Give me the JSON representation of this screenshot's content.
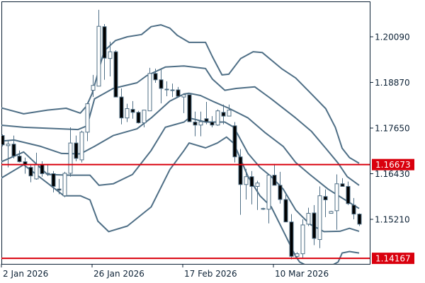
{
  "chart_data": {
    "type": "candlestick",
    "title": "",
    "x_unit": "bar index",
    "x_tick_labels": [
      {
        "index": 0,
        "label": "2 Jan 2026"
      },
      {
        "index": 16,
        "label": "26 Jan 2026"
      },
      {
        "index": 32,
        "label": "17 Feb 2026"
      },
      {
        "index": 48,
        "label": "10 Mar 2026"
      }
    ],
    "y_tick_labels": [
      "1.20090",
      "1.18870",
      "1.17650",
      "1.16430",
      "1.15210"
    ],
    "y_ticks": [
      1.2009,
      1.1887,
      1.1765,
      1.1643,
      1.1521
    ],
    "ylim": [
      1.1395,
      1.2099
    ],
    "y_axis_position": "right",
    "grid": false,
    "colors": {
      "line": "#4f6f86",
      "bear_body": "#000000",
      "bull_body": "#ffffff",
      "horizontal_line": "#d9000d",
      "axis": "#0d2236"
    },
    "candles_ohlc": [
      [
        1.1745,
        1.1748,
        1.1716,
        1.172
      ],
      [
        1.1718,
        1.173,
        1.166,
        1.1722
      ],
      [
        1.1722,
        1.1745,
        1.1684,
        1.169
      ],
      [
        1.169,
        1.1705,
        1.1673,
        1.1675
      ],
      [
        1.1675,
        1.1686,
        1.1643,
        1.1667
      ],
      [
        1.166,
        1.1667,
        1.162,
        1.1637
      ],
      [
        1.1629,
        1.1699,
        1.1627,
        1.1667
      ],
      [
        1.1667,
        1.1676,
        1.1635,
        1.1643
      ],
      [
        1.1643,
        1.1667,
        1.1637,
        1.1644
      ],
      [
        1.1643,
        1.165,
        1.1593,
        1.1609
      ],
      [
        1.1602,
        1.1629,
        1.1588,
        1.1599
      ],
      [
        1.1584,
        1.1648,
        1.158,
        1.1644
      ],
      [
        1.1644,
        1.1767,
        1.1635,
        1.1725
      ],
      [
        1.1725,
        1.1745,
        1.1676,
        1.1684
      ],
      [
        1.168,
        1.1758,
        1.1673,
        1.1754
      ],
      [
        1.1754,
        1.1833,
        1.173,
        1.183
      ],
      [
        1.1866,
        1.1907,
        1.1848,
        1.1879
      ],
      [
        1.1877,
        1.2081,
        1.1877,
        1.2037
      ],
      [
        1.2036,
        1.2043,
        1.1894,
        1.1952
      ],
      [
        1.1951,
        1.1996,
        1.1903,
        1.1969
      ],
      [
        1.1969,
        1.1973,
        1.1848,
        1.1848
      ],
      [
        1.1848,
        1.1871,
        1.1775,
        1.1792
      ],
      [
        1.1792,
        1.183,
        1.1781,
        1.1817
      ],
      [
        1.1815,
        1.1837,
        1.179,
        1.1807
      ],
      [
        1.1807,
        1.1811,
        1.1777,
        1.1779
      ],
      [
        1.1779,
        1.1813,
        1.1767,
        1.1813
      ],
      [
        1.1811,
        1.1926,
        1.1811,
        1.1911
      ],
      [
        1.1911,
        1.1924,
        1.1886,
        1.1894
      ],
      [
        1.1894,
        1.1924,
        1.1831,
        1.1871
      ],
      [
        1.1869,
        1.189,
        1.185,
        1.1869
      ],
      [
        1.1867,
        1.1884,
        1.1848,
        1.1867
      ],
      [
        1.1867,
        1.1875,
        1.185,
        1.185
      ],
      [
        1.1848,
        1.1858,
        1.1805,
        1.1854
      ],
      [
        1.1854,
        1.1854,
        1.1782,
        1.1782
      ],
      [
        1.1781,
        1.1809,
        1.1743,
        1.1773
      ],
      [
        1.1773,
        1.1809,
        1.1743,
        1.1782
      ],
      [
        1.179,
        1.1835,
        1.1775,
        1.1782
      ],
      [
        1.1781,
        1.1797,
        1.1767,
        1.1773
      ],
      [
        1.1773,
        1.1815,
        1.1771,
        1.1811
      ],
      [
        1.1807,
        1.1828,
        1.1775,
        1.1797
      ],
      [
        1.1797,
        1.1828,
        1.1797,
        1.1813
      ],
      [
        1.1771,
        1.1781,
        1.1673,
        1.1688
      ],
      [
        1.1688,
        1.1709,
        1.1533,
        1.1614
      ],
      [
        1.1614,
        1.1656,
        1.1574,
        1.1635
      ],
      [
        1.1635,
        1.165,
        1.1561,
        1.1609
      ],
      [
        1.1609,
        1.1624,
        1.1546,
        1.1618
      ],
      [
        1.1548,
        1.1552,
        1.1546,
        1.155
      ],
      [
        1.1548,
        1.1639,
        1.151,
        1.1639
      ],
      [
        1.1639,
        1.1669,
        1.1612,
        1.1612
      ],
      [
        1.1612,
        1.1648,
        1.1563,
        1.1574
      ],
      [
        1.1574,
        1.1591,
        1.1514,
        1.1514
      ],
      [
        1.1514,
        1.1535,
        1.1414,
        1.1422
      ],
      [
        1.1422,
        1.1433,
        1.1418,
        1.1429
      ],
      [
        1.1429,
        1.1521,
        1.1418,
        1.1506
      ],
      [
        1.1508,
        1.1552,
        1.1503,
        1.1537
      ],
      [
        1.1538,
        1.1559,
        1.1452,
        1.147
      ],
      [
        1.1467,
        1.1609,
        1.1444,
        1.1584
      ],
      [
        1.1582,
        1.1601,
        1.1527,
        1.1573
      ],
      [
        1.1537,
        1.1544,
        1.1537,
        1.1542
      ],
      [
        1.1544,
        1.1641,
        1.1493,
        1.1616
      ],
      [
        1.1616,
        1.1631,
        1.1609,
        1.1609
      ],
      [
        1.1609,
        1.1622,
        1.1559,
        1.1563
      ],
      [
        1.1559,
        1.1578,
        1.1521,
        1.1535
      ],
      [
        1.1535,
        1.1537,
        1.1503,
        1.1508
      ]
    ],
    "bands": [
      {
        "points": [
          [
            -0.4,
            1.182
          ],
          [
            3.8,
            1.1803
          ],
          [
            8,
            1.1813
          ],
          [
            11.3,
            1.1818
          ],
          [
            13.8,
            1.1805
          ],
          [
            14.9,
            1.1824
          ],
          [
            15.9,
            1.1858
          ],
          [
            18,
            1.1971
          ],
          [
            20,
            1.1999
          ],
          [
            22.1,
            1.2009
          ],
          [
            24.6,
            1.2015
          ],
          [
            26.3,
            1.2036
          ],
          [
            28,
            1.2041
          ],
          [
            29.6,
            1.2032
          ],
          [
            30.9,
            1.2013
          ],
          [
            33,
            1.1994
          ],
          [
            35.9,
            1.1994
          ],
          [
            37.1,
            1.1956
          ],
          [
            38.8,
            1.1907
          ],
          [
            40,
            1.1909
          ],
          [
            42.1,
            1.1951
          ],
          [
            44.3,
            1.1969
          ],
          [
            45.9,
            1.1967
          ],
          [
            49.3,
            1.1924
          ],
          [
            51.8,
            1.1899
          ],
          [
            54.6,
            1.1856
          ],
          [
            57.1,
            1.1817
          ],
          [
            58.8,
            1.1767
          ],
          [
            60,
            1.1711
          ],
          [
            61.3,
            1.1686
          ],
          [
            63,
            1.1671
          ]
        ]
      },
      {
        "points": [
          [
            -0.4,
            1.1773
          ],
          [
            3.8,
            1.1767
          ],
          [
            13.4,
            1.1761
          ],
          [
            15,
            1.1771
          ],
          [
            16.3,
            1.1843
          ],
          [
            19.6,
            1.1871
          ],
          [
            23.8,
            1.1886
          ],
          [
            25.5,
            1.1905
          ],
          [
            28.8,
            1.1928
          ],
          [
            32.1,
            1.1931
          ],
          [
            35.9,
            1.1924
          ],
          [
            37.1,
            1.1896
          ],
          [
            39.3,
            1.1866
          ],
          [
            41.3,
            1.1871
          ],
          [
            44.6,
            1.1875
          ],
          [
            47.5,
            1.1843
          ],
          [
            51.8,
            1.1792
          ],
          [
            54.6,
            1.1756
          ],
          [
            57.1,
            1.1711
          ],
          [
            59.3,
            1.1671
          ],
          [
            60.9,
            1.1635
          ],
          [
            63,
            1.1612
          ]
        ]
      },
      {
        "points": [
          [
            -0.4,
            1.173
          ],
          [
            2.1,
            1.1733
          ],
          [
            6.8,
            1.1716
          ],
          [
            10.5,
            1.1697
          ],
          [
            13.8,
            1.1696
          ],
          [
            16.3,
            1.1716
          ],
          [
            19.6,
            1.1745
          ],
          [
            23.8,
            1.1763
          ],
          [
            26.3,
            1.1792
          ],
          [
            29.6,
            1.1837
          ],
          [
            32.1,
            1.1856
          ],
          [
            33,
            1.1858
          ],
          [
            35,
            1.1852
          ],
          [
            37.1,
            1.1837
          ],
          [
            40,
            1.1818
          ],
          [
            43.4,
            1.1792
          ],
          [
            46.3,
            1.1754
          ],
          [
            49.6,
            1.1716
          ],
          [
            51.8,
            1.1673
          ],
          [
            54.3,
            1.1641
          ],
          [
            57.5,
            1.1602
          ],
          [
            60,
            1.1578
          ],
          [
            63,
            1.155
          ]
        ]
      },
      {
        "points": [
          [
            -0.4,
            1.1673
          ],
          [
            3.8,
            1.1701
          ],
          [
            8,
            1.1641
          ],
          [
            12.1,
            1.1639
          ],
          [
            15.5,
            1.1639
          ],
          [
            17.1,
            1.1612
          ],
          [
            19.6,
            1.1616
          ],
          [
            23,
            1.1641
          ],
          [
            26.3,
            1.1705
          ],
          [
            28.8,
            1.1767
          ],
          [
            32.1,
            1.1781
          ],
          [
            33,
            1.1792
          ],
          [
            35.9,
            1.1781
          ],
          [
            39.3,
            1.1781
          ],
          [
            40.9,
            1.1767
          ],
          [
            43.4,
            1.1697
          ],
          [
            45.5,
            1.166
          ],
          [
            47.5,
            1.1635
          ],
          [
            49.6,
            1.1602
          ],
          [
            51.8,
            1.1546
          ],
          [
            54.3,
            1.1508
          ],
          [
            56.8,
            1.1488
          ],
          [
            59.6,
            1.1489
          ],
          [
            61.3,
            1.1497
          ],
          [
            63,
            1.1489
          ]
        ]
      },
      {
        "points": [
          [
            -0.4,
            1.1629
          ],
          [
            3.8,
            1.1667
          ],
          [
            10.9,
            1.1584
          ],
          [
            13.8,
            1.1584
          ],
          [
            15.5,
            1.1573
          ],
          [
            16.9,
            1.1516
          ],
          [
            18.8,
            1.1488
          ],
          [
            22.1,
            1.1503
          ],
          [
            26.3,
            1.1554
          ],
          [
            29.6,
            1.1654
          ],
          [
            32.1,
            1.1705
          ],
          [
            33,
            1.1725
          ],
          [
            35.9,
            1.1712
          ],
          [
            38,
            1.1725
          ],
          [
            39.6,
            1.1741
          ],
          [
            40.9,
            1.1724
          ],
          [
            43.4,
            1.1635
          ],
          [
            45.5,
            1.1584
          ],
          [
            47.5,
            1.1554
          ],
          [
            50,
            1.1478
          ],
          [
            51.8,
            1.1422
          ],
          [
            52.5,
            1.1407
          ],
          [
            56,
            1.138
          ],
          [
            59.3,
            1.1407
          ],
          [
            60,
            1.1431
          ],
          [
            61.3,
            1.1435
          ],
          [
            63,
            1.1431
          ]
        ]
      }
    ],
    "horizontal_lines": [
      {
        "value": 1.16673,
        "label": "1.16673"
      },
      {
        "value": 1.14167,
        "label": "1.14167"
      }
    ]
  }
}
